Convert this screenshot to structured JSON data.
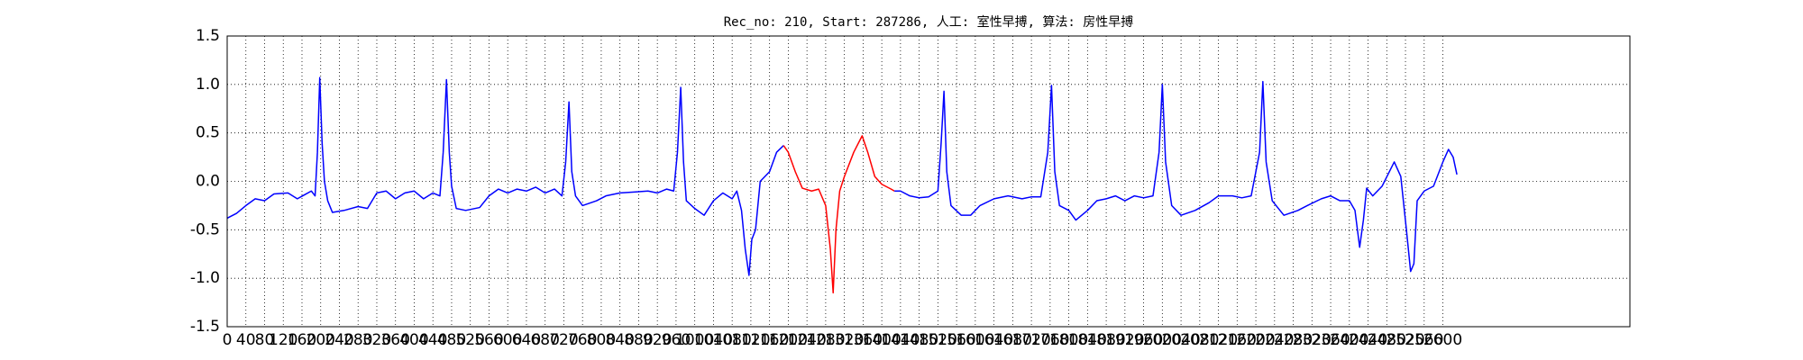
{
  "chart_data": {
    "type": "line",
    "title": "Rec_no: 210, Start: 287286, 人工: 室性早搏, 算法: 房性早搏",
    "grid": true,
    "xlim": [
      0,
      3000
    ],
    "ylim": [
      -1.5,
      1.5
    ],
    "xticks": [
      0,
      40,
      80,
      120,
      160,
      200,
      240,
      280,
      320,
      360,
      400,
      440,
      480,
      520,
      560,
      600,
      640,
      680,
      720,
      760,
      800,
      840,
      880,
      920,
      960,
      1000,
      1040,
      1080,
      1120,
      1160,
      1200,
      1240,
      1280,
      1320,
      1360,
      1400,
      1440,
      1480,
      1520,
      1560,
      1600,
      1640,
      1680,
      1720,
      1760,
      1800,
      1840,
      1880,
      1920,
      1960,
      2000,
      2040,
      2080,
      2120,
      2160,
      2200,
      2240,
      2280,
      2320,
      2360,
      2400,
      2440,
      2480,
      2520,
      2560,
      2600
    ],
    "yticks": [
      -1.5,
      {
        "value": -1.0,
        "label": "-1.0"
      },
      -0.5,
      {
        "value": 0,
        "label": "0.0"
      },
      0.5,
      {
        "value": 1.0,
        "label": "1.0"
      },
      1.5
    ],
    "series": [
      {
        "color": "#0000ff",
        "x": [
          0,
          20,
          40,
          60,
          80,
          100,
          130,
          150,
          165,
          180,
          188,
          193,
          198,
          203,
          208,
          215,
          225,
          250,
          280,
          300,
          320,
          340,
          360,
          380,
          400,
          420,
          440,
          455,
          462,
          469,
          475,
          480,
          490,
          510,
          540,
          560,
          580,
          600,
          620,
          640,
          660,
          680,
          700,
          716,
          724,
          731,
          737,
          745,
          760,
          790,
          810,
          840,
          870,
          900,
          920,
          940,
          955,
          963,
          970,
          976,
          982,
          1000,
          1020,
          1040,
          1060,
          1080,
          1090,
          1100,
          1108,
          1116,
          1122,
          1130,
          1140,
          1160,
          1175,
          1190
        ],
        "values": [
          -0.38,
          -0.33,
          -0.25,
          -0.18,
          -0.2,
          -0.13,
          -0.12,
          -0.18,
          -0.14,
          -0.1,
          -0.15,
          0.3,
          1.07,
          0.4,
          0.0,
          -0.2,
          -0.32,
          -0.3,
          -0.26,
          -0.28,
          -0.12,
          -0.1,
          -0.18,
          -0.12,
          -0.1,
          -0.18,
          -0.12,
          -0.15,
          0.3,
          1.05,
          0.3,
          -0.05,
          -0.28,
          -0.3,
          -0.27,
          -0.15,
          -0.08,
          -0.12,
          -0.08,
          -0.1,
          -0.06,
          -0.12,
          -0.08,
          -0.15,
          0.2,
          0.82,
          0.1,
          -0.15,
          -0.25,
          -0.2,
          -0.15,
          -0.12,
          -0.11,
          -0.1,
          -0.12,
          -0.08,
          -0.1,
          0.3,
          0.97,
          0.2,
          -0.2,
          -0.28,
          -0.35,
          -0.2,
          -0.12,
          -0.18,
          -0.1,
          -0.3,
          -0.7,
          -0.97,
          -0.6,
          -0.5,
          0.0,
          0.1,
          0.3,
          0.37
        ]
      },
      {
        "color": "#ff0000",
        "x": [
          1190,
          1200,
          1215,
          1230,
          1250,
          1265,
          1280,
          1290,
          1296,
          1302,
          1310,
          1320,
          1340,
          1358,
          1370,
          1385,
          1400,
          1420,
          1427
        ],
        "values": [
          0.37,
          0.3,
          0.1,
          -0.07,
          -0.1,
          -0.08,
          -0.25,
          -0.7,
          -1.15,
          -0.5,
          -0.1,
          0.05,
          0.3,
          0.47,
          0.3,
          0.05,
          -0.03,
          -0.08,
          -0.1
        ]
      },
      {
        "color": "#0000ff",
        "x": [
          1427,
          1440,
          1460,
          1480,
          1500,
          1520,
          1527,
          1533,
          1539,
          1548,
          1570,
          1590,
          1610,
          1640,
          1670,
          1700,
          1720,
          1740,
          1755,
          1763,
          1770,
          1780,
          1800,
          1815,
          1840,
          1860,
          1880,
          1900,
          1920,
          1940,
          1960,
          1980,
          1993,
          2000,
          2007,
          2020,
          2040,
          2070,
          2100,
          2120,
          2150,
          2170,
          2190,
          2208,
          2215,
          2222,
          2235,
          2260,
          2290,
          2310,
          2340,
          2360,
          2380,
          2400,
          2412,
          2422,
          2430,
          2437,
          2450,
          2470,
          2496,
          2510,
          2522,
          2531,
          2538,
          2545,
          2560,
          2580,
          2600,
          2612,
          2622,
          2630
        ],
        "values": [
          -0.1,
          -0.1,
          -0.15,
          -0.17,
          -0.16,
          -0.1,
          0.4,
          0.93,
          0.1,
          -0.25,
          -0.35,
          -0.35,
          -0.25,
          -0.18,
          -0.15,
          -0.18,
          -0.16,
          -0.16,
          0.3,
          0.99,
          0.1,
          -0.25,
          -0.3,
          -0.4,
          -0.3,
          -0.2,
          -0.18,
          -0.15,
          -0.2,
          -0.15,
          -0.17,
          -0.15,
          0.3,
          1.0,
          0.2,
          -0.25,
          -0.35,
          -0.3,
          -0.22,
          -0.15,
          -0.15,
          -0.17,
          -0.15,
          0.3,
          1.03,
          0.2,
          -0.2,
          -0.35,
          -0.3,
          -0.25,
          -0.18,
          -0.15,
          -0.2,
          -0.2,
          -0.3,
          -0.68,
          -0.4,
          -0.07,
          -0.15,
          -0.05,
          0.2,
          0.05,
          -0.5,
          -0.93,
          -0.85,
          -0.2,
          -0.1,
          -0.05,
          0.2,
          0.33,
          0.25,
          0.07
        ]
      }
    ]
  }
}
